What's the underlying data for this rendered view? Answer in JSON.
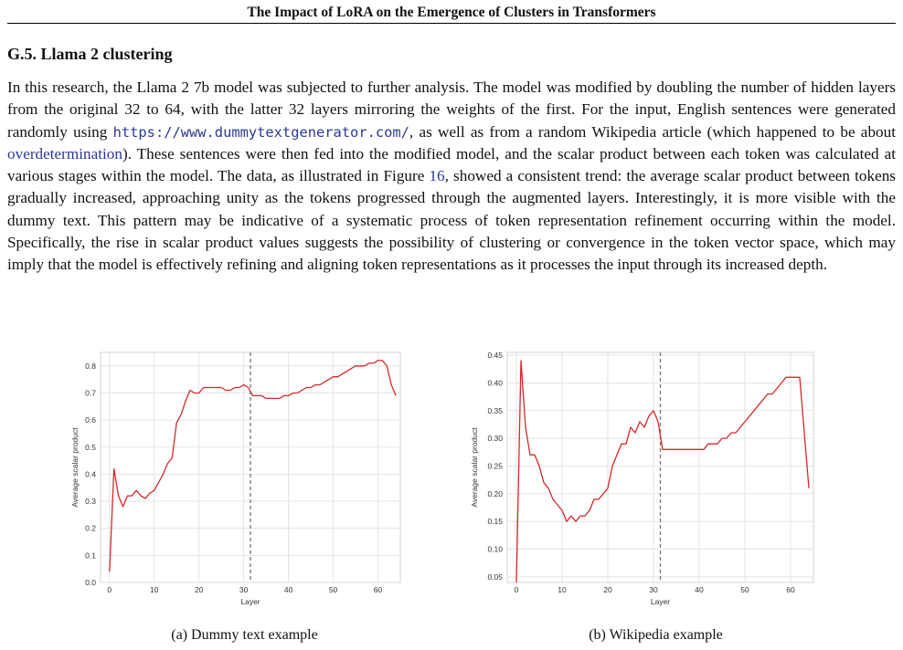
{
  "header": {
    "title": "The Impact of LoRA on the Emergence of Clusters in Transformers"
  },
  "section": {
    "heading": "G.5. Llama 2 clustering"
  },
  "paragraph": {
    "part1": "In this research, the Llama 2 7b model was subjected to further analysis. The model was modified by doubling the number of hidden layers from the original 32 to 64, with the latter 32 layers mirroring the weights of the first. For the input, English sentences were generated randomly using ",
    "url": "https://www.dummytextgenerator.com/",
    "part2": ", as well as from a random Wikipedia article (which happened to be about ",
    "link": "overdetermination",
    "part3": "). These sentences were then fed into the modified model, and the scalar product between each token was calculated at various stages within the model. The data, as illustrated in Figure ",
    "figref": "16",
    "part4": ", showed a consistent trend: the average scalar product between tokens gradually increased, approaching unity as the tokens progressed through the augmented layers. Interestingly, it is more visible with the dummy text. This pattern may be indicative of a systematic process of token representation refinement occurring within the model. Specifically, the rise in scalar product values suggests the possibility of clustering or convergence in the token vector space, which may imply that the model is effectively refining and aligning token representations as it processes the input through its increased depth."
  },
  "captions": {
    "a": "(a) Dummy text example",
    "b": "(b) Wikipedia example"
  },
  "chart_data": [
    {
      "type": "line",
      "xlabel": "Layer",
      "ylabel": "Average scalar product",
      "xlim": [
        -2,
        65
      ],
      "ylim": [
        0.0,
        0.85
      ],
      "xticks": [
        "0",
        "10",
        "20",
        "30",
        "40",
        "50",
        "60"
      ],
      "yticks": [
        "0.0",
        "0.1",
        "0.2",
        "0.3",
        "0.4",
        "0.5",
        "0.6",
        "0.7",
        "0.8"
      ],
      "grid": true,
      "vline": 31.5,
      "line_color": "#d62728",
      "series": [
        {
          "x": [
            0,
            1,
            2,
            3,
            4,
            5,
            6,
            7,
            8,
            9,
            10,
            11,
            12,
            13,
            14,
            15,
            16,
            17,
            18,
            19,
            20,
            21,
            22,
            23,
            24,
            25,
            26,
            27,
            28,
            29,
            30,
            31,
            32,
            33,
            34,
            35,
            36,
            37,
            38,
            39,
            40,
            41,
            42,
            43,
            44,
            45,
            46,
            47,
            48,
            49,
            50,
            51,
            52,
            53,
            54,
            55,
            56,
            57,
            58,
            59,
            60,
            61,
            62,
            63,
            64
          ],
          "y": [
            0.04,
            0.42,
            0.32,
            0.28,
            0.32,
            0.32,
            0.34,
            0.32,
            0.31,
            0.33,
            0.34,
            0.37,
            0.4,
            0.44,
            0.46,
            0.59,
            0.62,
            0.67,
            0.71,
            0.7,
            0.7,
            0.72,
            0.72,
            0.72,
            0.72,
            0.72,
            0.71,
            0.71,
            0.72,
            0.72,
            0.73,
            0.72,
            0.69,
            0.69,
            0.69,
            0.68,
            0.68,
            0.68,
            0.68,
            0.69,
            0.69,
            0.7,
            0.7,
            0.71,
            0.72,
            0.72,
            0.73,
            0.73,
            0.74,
            0.75,
            0.76,
            0.76,
            0.77,
            0.78,
            0.79,
            0.8,
            0.8,
            0.8,
            0.81,
            0.81,
            0.82,
            0.82,
            0.8,
            0.73,
            0.69
          ]
        }
      ]
    },
    {
      "type": "line",
      "xlabel": "Layer",
      "ylabel": "Average scalar product",
      "xlim": [
        -2,
        65
      ],
      "ylim": [
        0.04,
        0.455
      ],
      "xticks": [
        "0",
        "10",
        "20",
        "30",
        "40",
        "50",
        "60"
      ],
      "yticks": [
        "0.05",
        "0.10",
        "0.15",
        "0.20",
        "0.25",
        "0.30",
        "0.35",
        "0.40",
        "0.45"
      ],
      "grid": true,
      "vline": 31.5,
      "line_color": "#d62728",
      "series": [
        {
          "x": [
            0,
            1,
            2,
            3,
            4,
            5,
            6,
            7,
            8,
            9,
            10,
            11,
            12,
            13,
            14,
            15,
            16,
            17,
            18,
            19,
            20,
            21,
            22,
            23,
            24,
            25,
            26,
            27,
            28,
            29,
            30,
            31,
            32,
            33,
            34,
            35,
            36,
            37,
            38,
            39,
            40,
            41,
            42,
            43,
            44,
            45,
            46,
            47,
            48,
            49,
            50,
            51,
            52,
            53,
            54,
            55,
            56,
            57,
            58,
            59,
            60,
            61,
            62,
            63,
            64
          ],
          "y": [
            0.04,
            0.44,
            0.32,
            0.27,
            0.27,
            0.25,
            0.22,
            0.21,
            0.19,
            0.18,
            0.17,
            0.15,
            0.16,
            0.15,
            0.16,
            0.16,
            0.17,
            0.19,
            0.19,
            0.2,
            0.21,
            0.25,
            0.27,
            0.29,
            0.29,
            0.32,
            0.31,
            0.33,
            0.32,
            0.34,
            0.35,
            0.33,
            0.28,
            0.28,
            0.28,
            0.28,
            0.28,
            0.28,
            0.28,
            0.28,
            0.28,
            0.28,
            0.29,
            0.29,
            0.29,
            0.3,
            0.3,
            0.31,
            0.31,
            0.32,
            0.33,
            0.34,
            0.35,
            0.36,
            0.37,
            0.38,
            0.38,
            0.39,
            0.4,
            0.41,
            0.41,
            0.41,
            0.41,
            0.31,
            0.21
          ]
        }
      ]
    }
  ]
}
